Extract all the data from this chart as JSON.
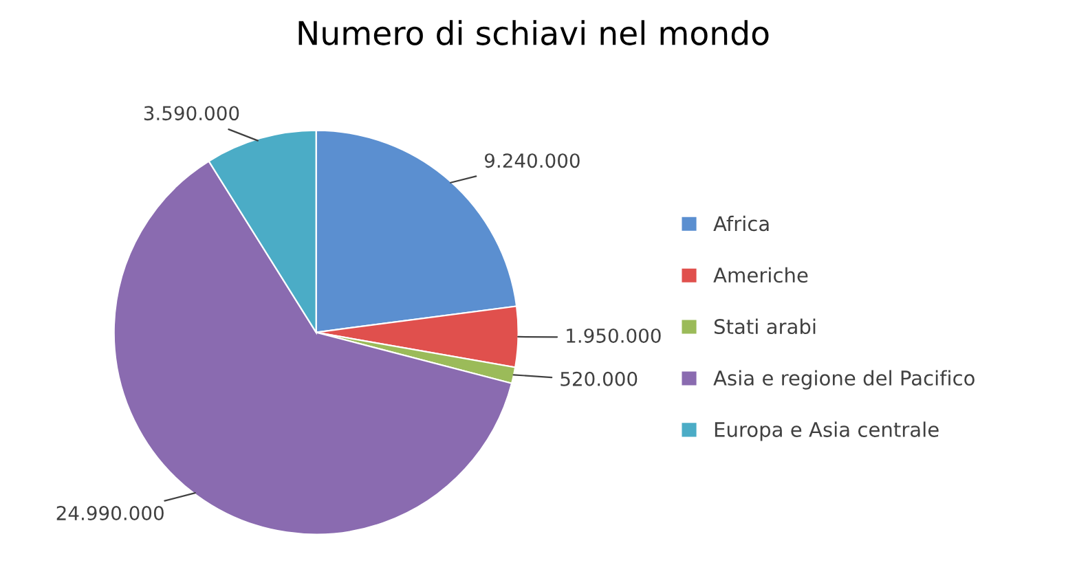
{
  "chart_data": {
    "type": "pie",
    "title": "Numero di schiavi nel mondo",
    "categories": [
      "Africa",
      "Americhe",
      "Stati arabi",
      "Asia e regione del Pacifico",
      "Europa e Asia centrale"
    ],
    "values": [
      9240000,
      1950000,
      520000,
      24990000,
      3590000
    ],
    "value_labels": [
      "9.240.000",
      "1.950.000",
      "520.000",
      "24.990.000",
      "3.590.000"
    ],
    "colors": [
      "#5b8fd0",
      "#e0504d",
      "#9bbb59",
      "#8a6bb0",
      "#4bacc6"
    ],
    "legend": "right"
  }
}
